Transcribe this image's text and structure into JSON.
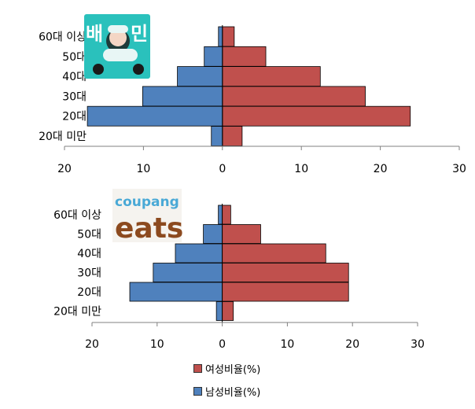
{
  "colors": {
    "female": "#C0504D",
    "male": "#4F81BD",
    "axis": "#808080"
  },
  "legend": [
    {
      "label": "여성비율(%)",
      "color": "#C0504D"
    },
    {
      "label": "남성비율(%)",
      "color": "#4F81BD"
    }
  ],
  "chart_data": [
    {
      "type": "bar",
      "orientation": "horizontal-butterfly",
      "logo": {
        "name": "baemin-logo",
        "text": "배민",
        "colors": [
          "#2AC1BC",
          "#FFFFFF"
        ]
      },
      "categories": [
        "20대 미만",
        "20대",
        "30대",
        "40대",
        "50대",
        "60대 이상"
      ],
      "series": [
        {
          "name": "여성비율(%)",
          "values": [
            2.5,
            23.8,
            18.1,
            12.4,
            5.5,
            1.5
          ]
        },
        {
          "name": "남성비율(%)",
          "values": [
            1.4,
            17.1,
            10.1,
            5.7,
            2.3,
            0.5
          ]
        }
      ],
      "xlim": [
        -20,
        30
      ],
      "xticks": [
        -20,
        -10,
        0,
        10,
        20,
        30
      ],
      "xtick_labels": [
        "20",
        "10",
        "0",
        "10",
        "20",
        "30"
      ],
      "title": "",
      "xlabel": "",
      "ylabel": ""
    },
    {
      "type": "bar",
      "orientation": "horizontal-butterfly",
      "logo": {
        "name": "coupang-eats-logo",
        "text_top": "coupang",
        "text_bottom": "eats"
      },
      "categories": [
        "20대 미만",
        "20대",
        "30대",
        "40대",
        "50대",
        "60대 이상"
      ],
      "series": [
        {
          "name": "여성비율(%)",
          "values": [
            1.7,
            19.4,
            19.4,
            15.9,
            5.9,
            1.3
          ]
        },
        {
          "name": "남성비율(%)",
          "values": [
            0.9,
            14.2,
            10.6,
            7.2,
            2.9,
            0.6
          ]
        }
      ],
      "xlim": [
        -20,
        30
      ],
      "xticks": [
        -20,
        -10,
        0,
        10,
        20,
        30
      ],
      "xtick_labels": [
        "20",
        "10",
        "0",
        "10",
        "20",
        "30"
      ],
      "title": "",
      "xlabel": "",
      "ylabel": ""
    }
  ]
}
